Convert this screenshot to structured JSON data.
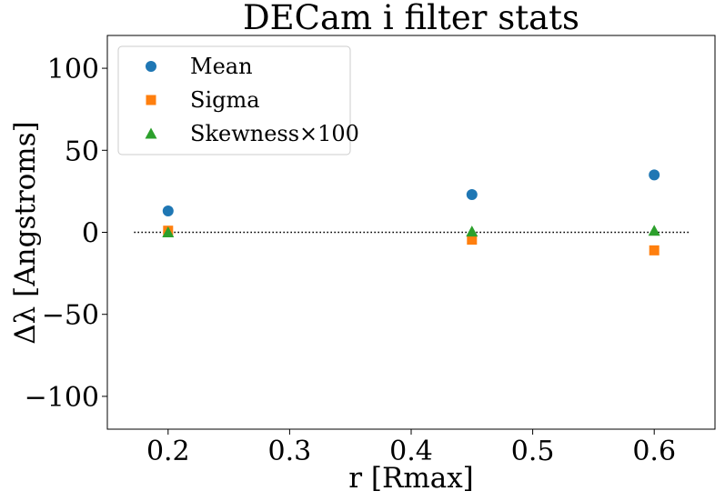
{
  "chart_data": {
    "type": "scatter",
    "title": "DECam i filter stats",
    "xlabel": "r [Rmax]",
    "ylabel": "Δλ [Angstroms]",
    "xlim": [
      0.15,
      0.65
    ],
    "ylim": [
      -120,
      120
    ],
    "xticks": [
      0.2,
      0.3,
      0.4,
      0.5,
      0.6
    ],
    "xtick_labels": [
      "0.2",
      "0.3",
      "0.4",
      "0.5",
      "0.6"
    ],
    "yticks": [
      -100,
      -50,
      0,
      50,
      100
    ],
    "ytick_labels": [
      "−100",
      "−50",
      "0",
      "50",
      "100"
    ],
    "grid": false,
    "legend_position": "top-left",
    "reference_line": {
      "y": 0,
      "x_range": [
        0.172,
        0.63
      ],
      "style": "dotted",
      "color": "#000000"
    },
    "series": [
      {
        "name": "Mean",
        "marker": "circle",
        "color": "#1f77b4",
        "x": [
          0.2,
          0.45,
          0.6
        ],
        "y": [
          13,
          23,
          35
        ]
      },
      {
        "name": "Sigma",
        "marker": "square",
        "color": "#ff7f0e",
        "x": [
          0.2,
          0.45,
          0.6
        ],
        "y": [
          1,
          -4.5,
          -11
        ]
      },
      {
        "name": "Skewness×100",
        "marker": "triangle",
        "color": "#2ca02c",
        "x": [
          0.2,
          0.45,
          0.6
        ],
        "y": [
          0,
          0.5,
          1
        ]
      }
    ]
  }
}
